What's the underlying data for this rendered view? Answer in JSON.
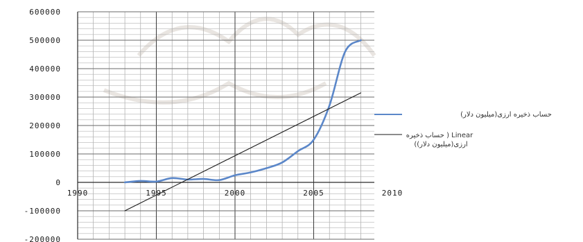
{
  "chart_data": {
    "type": "line",
    "title": "",
    "xlabel": "",
    "ylabel": "",
    "xlim": [
      1990,
      2010
    ],
    "ylim": [
      -200000,
      600000
    ],
    "x_ticks": [
      1990,
      1995,
      2000,
      2005,
      2010
    ],
    "y_ticks": [
      600000,
      500000,
      400000,
      300000,
      200000,
      100000,
      0,
      -100000,
      -200000
    ],
    "grid": "on",
    "legend_position": "right",
    "series": [
      {
        "name": "حساب ذخیره ارزی(میلیون دلار)",
        "kind": "data",
        "color": "#5b87c9",
        "x": [
          1993,
          1994,
          1995,
          1996,
          1997,
          1998,
          1999,
          2000,
          2001,
          2002,
          2003,
          2004,
          2005,
          2006,
          2007,
          2008
        ],
        "y": [
          0,
          5000,
          3000,
          15000,
          10000,
          12000,
          8000,
          25000,
          35000,
          50000,
          70000,
          110000,
          150000,
          270000,
          460000,
          500000
        ]
      },
      {
        "name": "Linear ( حساب ذخیره ارزی(میلیون دلار))",
        "kind": "trendline",
        "color": "#1a1a1a",
        "x": [
          1993,
          2008
        ],
        "y": [
          -100000,
          315000
        ]
      }
    ]
  },
  "legend": {
    "items": [
      {
        "label": "حساب ذخیره ارزی(میلیون دلار)",
        "color": "#5b87c9"
      },
      {
        "label_line1": "Linear ( حساب ذخیره",
        "label_line2": "ارزی(میلیون دلار))",
        "color": "#1a1a1a"
      }
    ]
  }
}
